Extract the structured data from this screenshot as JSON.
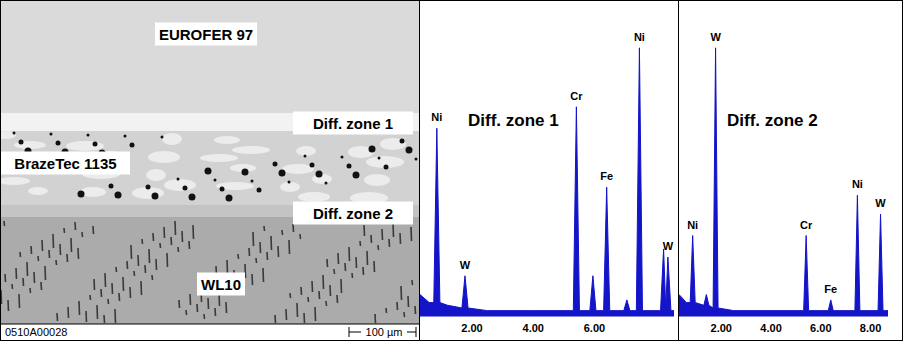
{
  "micrograph": {
    "layers": [
      "EUROFER 97",
      "Diff. zone 1",
      "BrazeTec 1135",
      "Diff. zone 2",
      "WL10"
    ],
    "image_id": "0510A00028",
    "scale_bar": "100 µm"
  },
  "chart_data": [
    {
      "type": "area",
      "title": "Diff. zone 1",
      "color": "#1414c8",
      "tick_labels": "x",
      "grid": false,
      "x": [
        0.3,
        0.6,
        0.75,
        0.85,
        0.95,
        1.2,
        1.67,
        1.77,
        1.87,
        2.5,
        4.0,
        5.31,
        5.41,
        5.51,
        5.85,
        5.95,
        6.05,
        6.3,
        6.4,
        6.5,
        6.96,
        7.06,
        7.16,
        7.37,
        7.47,
        7.57,
        8.16,
        8.26,
        8.33,
        8.4,
        8.5,
        8.6
      ],
      "values": [
        8,
        5,
        5,
        70,
        5,
        4,
        3,
        15,
        3,
        2,
        2,
        2,
        78,
        2,
        2,
        15,
        2,
        2,
        48,
        2,
        2,
        6,
        2,
        2,
        100,
        2,
        2,
        25,
        3,
        22,
        2,
        2
      ],
      "xlim": [
        0.3,
        8.6
      ],
      "xticks": [
        {
          "value": 2,
          "label": "2.00"
        },
        {
          "value": 4,
          "label": "4.00"
        },
        {
          "value": 6,
          "label": "6.00"
        }
      ],
      "ylim": [
        0,
        110
      ],
      "annotations": [
        {
          "text": "Ni",
          "x": 0.85,
          "y": 70
        },
        {
          "text": "W",
          "x": 1.77,
          "y": 15
        },
        {
          "text": "Cr",
          "x": 5.41,
          "y": 78
        },
        {
          "text": "Fe",
          "x": 6.4,
          "y": 48
        },
        {
          "text": "Ni",
          "x": 7.47,
          "y": 100
        },
        {
          "text": "W",
          "x": 8.4,
          "y": 22
        }
      ]
    },
    {
      "type": "area",
      "title": "Diff. zone 2",
      "color": "#1414c8",
      "tick_labels": "x",
      "grid": false,
      "x": [
        0.3,
        0.6,
        0.75,
        0.85,
        0.95,
        1.3,
        1.4,
        1.5,
        1.67,
        1.77,
        1.87,
        2.5,
        4.0,
        5.31,
        5.41,
        5.51,
        6.3,
        6.4,
        6.5,
        7.37,
        7.47,
        7.57,
        8.3,
        8.4,
        8.5,
        8.7
      ],
      "values": [
        8,
        5,
        5,
        30,
        5,
        4,
        8,
        4,
        3,
        100,
        3,
        2,
        2,
        2,
        30,
        2,
        2,
        6,
        2,
        2,
        45,
        2,
        2,
        38,
        2,
        2
      ],
      "xlim": [
        0.3,
        8.7
      ],
      "xticks": [
        {
          "value": 2,
          "label": "2.00"
        },
        {
          "value": 4,
          "label": "4.00"
        },
        {
          "value": 6,
          "label": "6.00"
        },
        {
          "value": 8,
          "label": "8.00"
        }
      ],
      "ylim": [
        0,
        110
      ],
      "annotations": [
        {
          "text": "Ni",
          "x": 0.85,
          "y": 30
        },
        {
          "text": "W",
          "x": 1.77,
          "y": 100
        },
        {
          "text": "Cr",
          "x": 5.41,
          "y": 30
        },
        {
          "text": "Fe",
          "x": 6.4,
          "y": 6
        },
        {
          "text": "Ni",
          "x": 7.47,
          "y": 45
        },
        {
          "text": "W",
          "x": 8.4,
          "y": 38
        }
      ]
    }
  ]
}
